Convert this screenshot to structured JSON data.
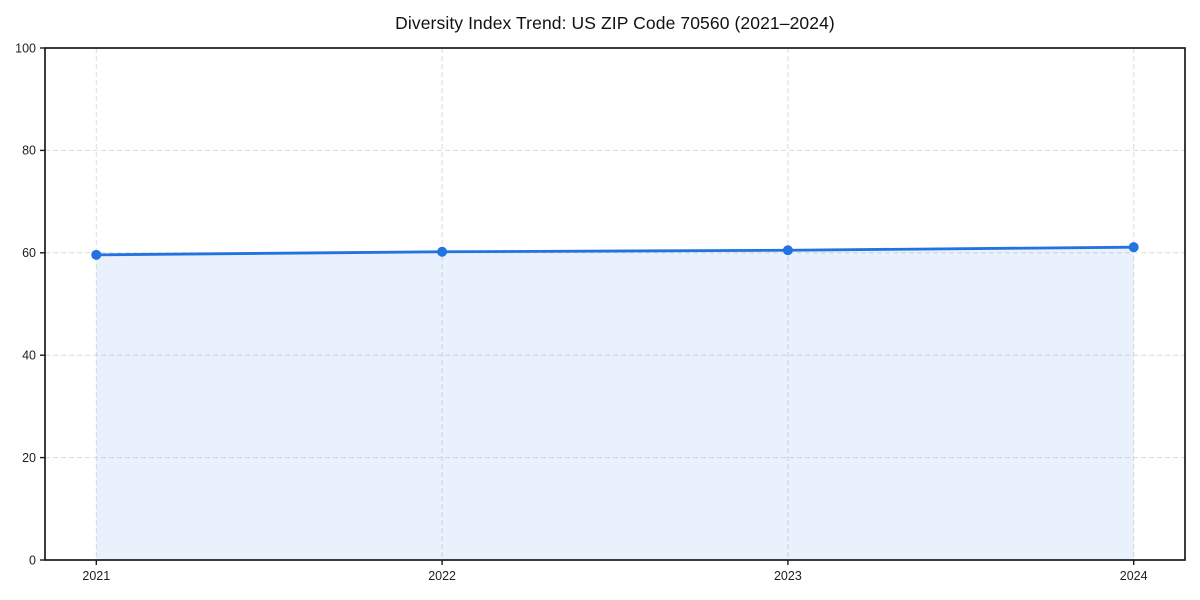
{
  "chart_data": {
    "type": "line",
    "title": "Diversity Index Trend: US ZIP Code 70560 (2021–2024)",
    "categories": [
      "2021",
      "2022",
      "2023",
      "2024"
    ],
    "series": [
      {
        "name": "Diversity Index",
        "values": [
          59.6,
          60.2,
          60.5,
          61.1
        ]
      }
    ],
    "xlabel": "",
    "ylabel": "",
    "ylim": [
      0,
      100
    ],
    "yticks": [
      0,
      20,
      40,
      60,
      80,
      100
    ],
    "grid": true,
    "grid_style": "dashed",
    "area_fill": true,
    "markers": "circle",
    "legend": "none",
    "colors": {
      "line": "#2273e0",
      "marker": "#2273e0",
      "area_fill": "#2273e0",
      "area_fill_opacity": 0.1,
      "grid": "#dcdcdc",
      "axis": "#1a1a1a",
      "tick_label": "#1f1f1f",
      "title": "#111111",
      "background": "#ffffff"
    }
  }
}
